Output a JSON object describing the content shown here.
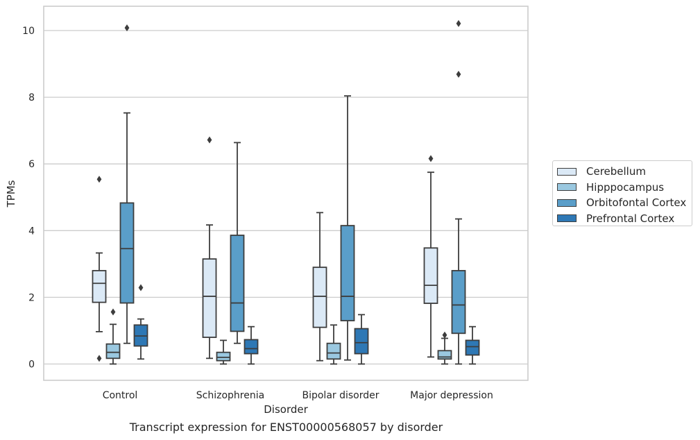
{
  "chart_data": {
    "type": "box",
    "caption": "Transcript expression for ENST00000568057 by disorder",
    "xlabel": "Disorder",
    "ylabel": "TPMs",
    "ylim": [
      -0.5,
      10.7
    ],
    "yticks": [
      0,
      2,
      4,
      6,
      8,
      10
    ],
    "grid": "horizontal",
    "legend_position": "right",
    "categories": [
      "Control",
      "Schizophrenia",
      "Bipolar disorder",
      "Major depression"
    ],
    "series": [
      {
        "name": "Cerebellum",
        "color": "#dbe9f6",
        "boxes": [
          {
            "whislo": 0.97,
            "q1": 1.85,
            "med": 2.42,
            "q3": 2.8,
            "whishi": 3.33,
            "fliers": [
              5.54,
              0.17
            ]
          },
          {
            "whislo": 0.17,
            "q1": 0.8,
            "med": 2.03,
            "q3": 3.15,
            "whishi": 4.17,
            "fliers": [
              6.72
            ]
          },
          {
            "whislo": 0.1,
            "q1": 1.1,
            "med": 2.03,
            "q3": 2.9,
            "whishi": 4.54,
            "fliers": []
          },
          {
            "whislo": 0.21,
            "q1": 1.82,
            "med": 2.36,
            "q3": 3.48,
            "whishi": 5.75,
            "fliers": [
              6.16
            ]
          }
        ]
      },
      {
        "name": "Hipppocampus",
        "color": "#9ac8e0",
        "boxes": [
          {
            "whislo": 0.0,
            "q1": 0.17,
            "med": 0.35,
            "q3": 0.6,
            "whishi": 1.19,
            "fliers": [
              1.56
            ]
          },
          {
            "whislo": 0.0,
            "q1": 0.1,
            "med": 0.2,
            "q3": 0.35,
            "whishi": 0.71,
            "fliers": []
          },
          {
            "whislo": 0.0,
            "q1": 0.15,
            "med": 0.33,
            "q3": 0.62,
            "whishi": 1.17,
            "fliers": []
          },
          {
            "whislo": 0.0,
            "q1": 0.15,
            "med": 0.21,
            "q3": 0.4,
            "whishi": 0.77,
            "fliers": [
              0.87
            ]
          }
        ]
      },
      {
        "name": "Orbitofontal Cortex",
        "color": "#5a9ec9",
        "boxes": [
          {
            "whislo": 0.62,
            "q1": 1.83,
            "med": 3.46,
            "q3": 4.83,
            "whishi": 7.53,
            "fliers": [
              10.08
            ]
          },
          {
            "whislo": 0.62,
            "q1": 0.98,
            "med": 1.83,
            "q3": 3.86,
            "whishi": 6.64,
            "fliers": []
          },
          {
            "whislo": 0.12,
            "q1": 1.3,
            "med": 2.03,
            "q3": 4.15,
            "whishi": 8.04,
            "fliers": []
          },
          {
            "whislo": 0.0,
            "q1": 0.92,
            "med": 1.77,
            "q3": 2.8,
            "whishi": 4.35,
            "fliers": [
              10.21,
              8.69
            ]
          }
        ]
      },
      {
        "name": "Prefrontal Cortex",
        "color": "#2e78b5",
        "boxes": [
          {
            "whislo": 0.15,
            "q1": 0.54,
            "med": 0.84,
            "q3": 1.17,
            "whishi": 1.35,
            "fliers": [
              2.29
            ]
          },
          {
            "whislo": 0.0,
            "q1": 0.31,
            "med": 0.46,
            "q3": 0.73,
            "whishi": 1.12,
            "fliers": []
          },
          {
            "whislo": 0.0,
            "q1": 0.31,
            "med": 0.64,
            "q3": 1.06,
            "whishi": 1.48,
            "fliers": []
          },
          {
            "whislo": 0.0,
            "q1": 0.27,
            "med": 0.52,
            "q3": 0.71,
            "whishi": 1.12,
            "fliers": []
          }
        ]
      }
    ]
  }
}
